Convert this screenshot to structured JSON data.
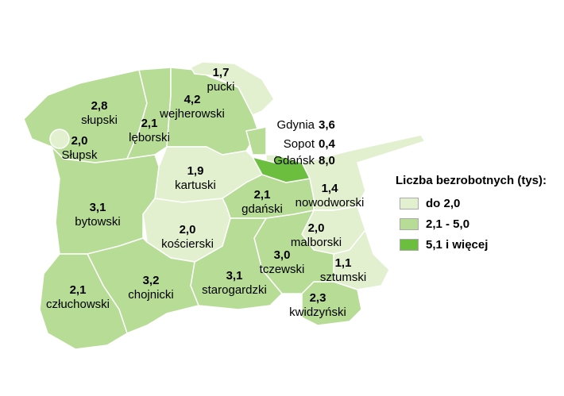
{
  "regions": [
    {
      "name": "słupski",
      "value": 2.8,
      "value_label": "2,8"
    },
    {
      "name": "Słupsk",
      "value": 2.0,
      "value_label": "2,0"
    },
    {
      "name": "lęborski",
      "value": 2.1,
      "value_label": "2,1"
    },
    {
      "name": "wejherowski",
      "value": 4.2,
      "value_label": "4,2"
    },
    {
      "name": "pucki",
      "value": 1.7,
      "value_label": "1,7"
    },
    {
      "name": "Gdynia",
      "value": 3.6,
      "value_label": "3,6"
    },
    {
      "name": "Sopot",
      "value": 0.4,
      "value_label": "0,4"
    },
    {
      "name": "Gdańsk",
      "value": 8.0,
      "value_label": "8,0"
    },
    {
      "name": "kartuski",
      "value": 1.9,
      "value_label": "1,9"
    },
    {
      "name": "bytowski",
      "value": 3.1,
      "value_label": "3,1"
    },
    {
      "name": "gdański",
      "value": 2.1,
      "value_label": "2,1"
    },
    {
      "name": "nowodworski",
      "value": 1.4,
      "value_label": "1,4"
    },
    {
      "name": "malborski",
      "value": 2.0,
      "value_label": "2,0"
    },
    {
      "name": "sztumski",
      "value": 1.1,
      "value_label": "1,1"
    },
    {
      "name": "kwidzyński",
      "value": 2.3,
      "value_label": "2,3"
    },
    {
      "name": "tczewski",
      "value": 3.0,
      "value_label": "3,0"
    },
    {
      "name": "starogardzki",
      "value": 3.1,
      "value_label": "3,1"
    },
    {
      "name": "kościerski",
      "value": 2.0,
      "value_label": "2,0"
    },
    {
      "name": "chojnicki",
      "value": 3.2,
      "value_label": "3,2"
    },
    {
      "name": "człuchowski",
      "value": 2.1,
      "value_label": "2,1"
    }
  ],
  "legend": {
    "title": "Liczba bezrobotnych (tys):",
    "items": [
      {
        "label": "do 2,0",
        "color": "#e2f0d0",
        "upto": 2.0
      },
      {
        "label": "2,1 - 5,0",
        "color": "#b7dc96",
        "upto": 5.0
      },
      {
        "label": "5,1 i więcej",
        "color": "#6cbf3e"
      }
    ]
  }
}
